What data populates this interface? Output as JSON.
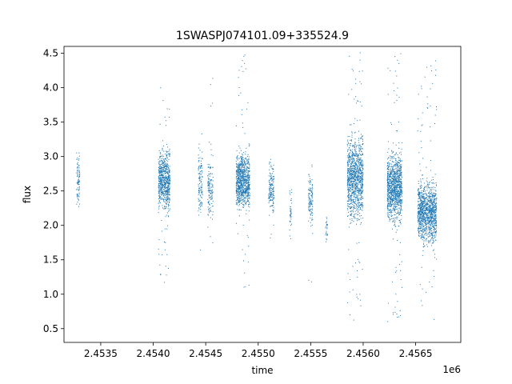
{
  "chart_data": {
    "type": "scatter",
    "title": "1SWASPJ074101.09+335524.9",
    "xlabel": "time",
    "ylabel": "flux",
    "x_offset_label": "1e6",
    "xlim": [
      2453150,
      2456930
    ],
    "ylim": [
      0.3,
      4.6
    ],
    "xticks": [
      2453500,
      2454000,
      2454500,
      2455000,
      2455500,
      2456000,
      2456500
    ],
    "xtick_labels": [
      "2.4535",
      "2.4540",
      "2.4545",
      "2.4550",
      "2.4555",
      "2.4560",
      "2.4565"
    ],
    "yticks": [
      0.5,
      1.0,
      1.5,
      2.0,
      2.5,
      3.0,
      3.5,
      4.0,
      4.5
    ],
    "ytick_labels": [
      "0.5",
      "1.0",
      "1.5",
      "2.0",
      "2.5",
      "3.0",
      "3.5",
      "4.0",
      "4.5"
    ],
    "grid": false,
    "marker_color": "#1f77b4",
    "series": [
      {
        "clusters": [
          {
            "x": [
              2453270,
              2453300
            ],
            "y_center": 2.65,
            "y_spread": 0.35,
            "y_min": 1.85,
            "y_max": 3.55,
            "n": 90
          },
          {
            "x": [
              2454050,
              2454160
            ],
            "y_center": 2.65,
            "y_spread": 0.4,
            "y_min": 1.1,
            "y_max": 4.2,
            "n": 700
          },
          {
            "x": [
              2454430,
              2454470
            ],
            "y_center": 2.6,
            "y_spread": 0.45,
            "y_min": 0.85,
            "y_max": 3.6,
            "n": 120
          },
          {
            "x": [
              2454520,
              2454570
            ],
            "y_center": 2.55,
            "y_spread": 0.45,
            "y_min": 1.2,
            "y_max": 4.25,
            "n": 140
          },
          {
            "x": [
              2454790,
              2454920
            ],
            "y_center": 2.65,
            "y_spread": 0.38,
            "y_min": 1.05,
            "y_max": 4.5,
            "n": 900
          },
          {
            "x": [
              2455100,
              2455150
            ],
            "y_center": 2.55,
            "y_spread": 0.35,
            "y_min": 1.7,
            "y_max": 3.3,
            "n": 160
          },
          {
            "x": [
              2455300,
              2455320
            ],
            "y_center": 2.2,
            "y_spread": 0.3,
            "y_min": 1.5,
            "y_max": 3.05,
            "n": 40
          },
          {
            "x": [
              2455480,
              2455520
            ],
            "y_center": 2.35,
            "y_spread": 0.35,
            "y_min": 1.15,
            "y_max": 3.0,
            "n": 120
          },
          {
            "x": [
              2455640,
              2455660
            ],
            "y_center": 1.95,
            "y_spread": 0.15,
            "y_min": 1.7,
            "y_max": 2.2,
            "n": 25
          },
          {
            "x": [
              2455850,
              2456000
            ],
            "y_center": 2.7,
            "y_spread": 0.55,
            "y_min": 0.5,
            "y_max": 4.52,
            "n": 1100
          },
          {
            "x": [
              2456230,
              2456370
            ],
            "y_center": 2.55,
            "y_spread": 0.45,
            "y_min": 0.6,
            "y_max": 4.5,
            "n": 1100
          },
          {
            "x": [
              2456520,
              2456700
            ],
            "y_center": 2.2,
            "y_spread": 0.42,
            "y_min": 0.55,
            "y_max": 4.4,
            "n": 1200
          }
        ]
      }
    ]
  }
}
